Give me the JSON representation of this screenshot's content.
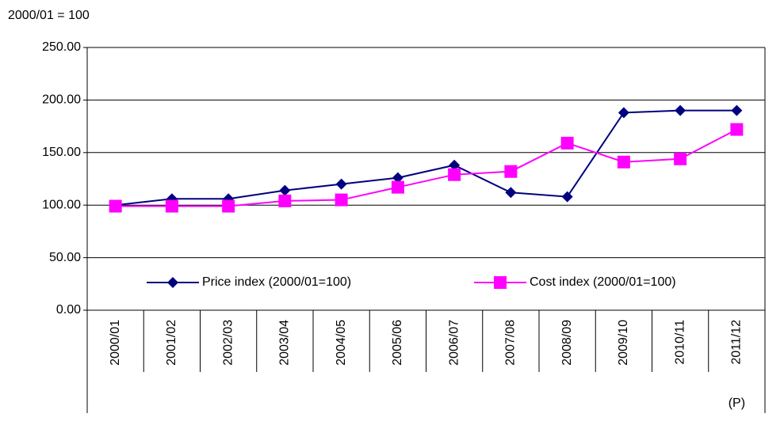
{
  "chart_data": {
    "type": "line",
    "y_axis_label": "2000/01 = 100",
    "categories": [
      "2000/01",
      "2001/02",
      "2002/03",
      "2003/04",
      "2004/05",
      "2005/06",
      "2006/07",
      "2007/08",
      "2008/09",
      "2009/10",
      "2010/11",
      "2011/12"
    ],
    "category_note": "(P)",
    "series": [
      {
        "name": "Price index (2000/01=100)",
        "color": "#000080",
        "marker": "diamond",
        "values": [
          100,
          106,
          106,
          114,
          120,
          126,
          138,
          112,
          108,
          188,
          190,
          190
        ]
      },
      {
        "name": "Cost index (2000/01=100)",
        "color": "#ff00ff",
        "marker": "square",
        "values": [
          99,
          99,
          99,
          104,
          105,
          117,
          129,
          132,
          159,
          141,
          144,
          172
        ]
      }
    ],
    "ylim": [
      0,
      250
    ],
    "yticks": [
      {
        "value": 0,
        "label": "0.00"
      },
      {
        "value": 50,
        "label": "50.00"
      },
      {
        "value": 100,
        "label": "100.00"
      },
      {
        "value": 150,
        "label": "150.00"
      },
      {
        "value": 200,
        "label": "200.00"
      },
      {
        "value": 250,
        "label": "250.00"
      }
    ],
    "grid": true
  }
}
